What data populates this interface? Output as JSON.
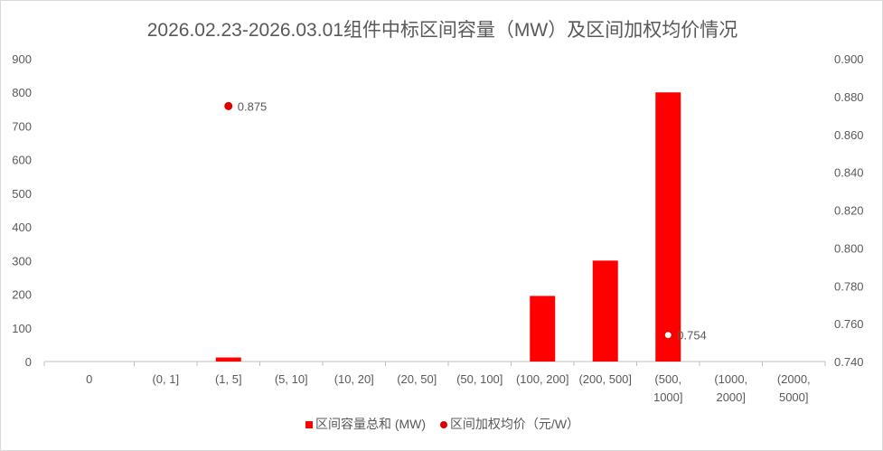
{
  "chart_data": {
    "type": "bar",
    "title": "2026.02.23-2026.03.01组件中标区间容量（MW）及区间加权均价情况",
    "categories": [
      "0",
      "(0, 1]",
      "(1, 5]",
      "(5, 10]",
      "(10, 20]",
      "(20, 50]",
      "(50, 100]",
      "(100, 200]",
      "(200, 500]",
      "(500, 1000]",
      "(1000, 2000]",
      "(2000, 5000]"
    ],
    "series": [
      {
        "name": "区间容量总和 (MW)",
        "type": "bar",
        "axis": "left",
        "color": "#ff0000",
        "values": [
          0,
          0,
          12,
          0,
          0,
          0,
          0,
          195,
          300,
          800,
          0,
          0
        ]
      },
      {
        "name": "区间加权均价（元/W）",
        "type": "scatter",
        "axis": "right",
        "color": "#e00000",
        "values": [
          null,
          null,
          0.875,
          null,
          null,
          null,
          null,
          null,
          null,
          0.754,
          null,
          null
        ],
        "labels": [
          null,
          null,
          "0.875",
          null,
          null,
          null,
          null,
          null,
          null,
          "0.754",
          null,
          null
        ]
      }
    ],
    "ylim": [
      0,
      900
    ],
    "yticks": [
      "0",
      "100",
      "200",
      "300",
      "400",
      "500",
      "600",
      "700",
      "800",
      "900"
    ],
    "y2lim": [
      0.74,
      0.9
    ],
    "y2ticks": [
      "0.740",
      "0.760",
      "0.780",
      "0.800",
      "0.820",
      "0.840",
      "0.860",
      "0.880",
      "0.900"
    ],
    "legend_position": "bottom"
  }
}
